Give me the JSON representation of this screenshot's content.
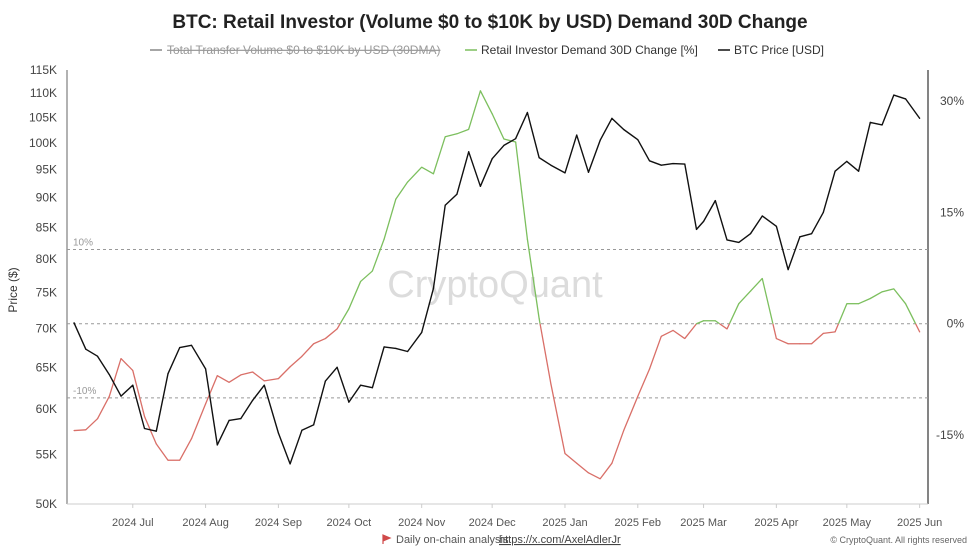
{
  "chart_data": {
    "type": "line",
    "title": "BTC: Retail Investor (Volume $0 to $10K by USD) Demand 30D Change",
    "legend": [
      {
        "name": "Total Transfer Volume $0 to $10K by USD (30DMA)",
        "color": "#888888",
        "hidden": true
      },
      {
        "name": "Retail Investor Demand 30D Change [%]",
        "color": "#7cbf5e"
      },
      {
        "name": "BTC Price [USD]",
        "color": "#111111"
      }
    ],
    "legend_position": "top-center",
    "ylabel": "Price ($)",
    "y_left": {
      "scale": "log",
      "range": [
        50000,
        115000
      ],
      "ticks": [
        "50K",
        "55K",
        "60K",
        "65K",
        "70K",
        "75K",
        "80K",
        "85K",
        "90K",
        "95K",
        "100K",
        "105K",
        "110K",
        "115K"
      ],
      "tick_values": [
        50000,
        55000,
        60000,
        65000,
        70000,
        75000,
        80000,
        85000,
        90000,
        95000,
        100000,
        105000,
        110000,
        115000
      ]
    },
    "y_right": {
      "range": [
        -24.3,
        34.2
      ],
      "ticks": [
        "-15%",
        "0%",
        "15%",
        "30%"
      ],
      "tick_values": [
        -15,
        0,
        15,
        30
      ]
    },
    "x_range": [
      "2024-06-03",
      "2025-06-02"
    ],
    "x_ticks": [
      "2024 Jul",
      "2024 Aug",
      "2024 Sep",
      "2024 Oct",
      "2024 Nov",
      "2024 Dec",
      "2025 Jan",
      "2025 Feb",
      "2025 Mar",
      "2025 Apr",
      "2025 May",
      "2025 Jun"
    ],
    "x_tick_dates": [
      "2024-07-01",
      "2024-08-01",
      "2024-09-01",
      "2024-10-01",
      "2024-11-01",
      "2024-12-01",
      "2025-01-01",
      "2025-02-01",
      "2025-03-01",
      "2025-04-01",
      "2025-05-01",
      "2025-06-01"
    ],
    "reference_lines": [
      {
        "value": 10,
        "label": "10%"
      },
      {
        "value": 0,
        "label": ""
      },
      {
        "value": -10,
        "label": "-10%"
      }
    ],
    "positive_color": "#7cbf5e",
    "negative_color": "#d96f68",
    "dates": [
      "2024-06-06",
      "2024-06-11",
      "2024-06-16",
      "2024-06-21",
      "2024-06-26",
      "2024-07-01",
      "2024-07-06",
      "2024-07-11",
      "2024-07-16",
      "2024-07-21",
      "2024-07-26",
      "2024-08-01",
      "2024-08-06",
      "2024-08-11",
      "2024-08-16",
      "2024-08-21",
      "2024-08-26",
      "2024-09-01",
      "2024-09-06",
      "2024-09-11",
      "2024-09-16",
      "2024-09-21",
      "2024-09-26",
      "2024-10-01",
      "2024-10-06",
      "2024-10-11",
      "2024-10-16",
      "2024-10-21",
      "2024-10-26",
      "2024-11-01",
      "2024-11-06",
      "2024-11-11",
      "2024-11-16",
      "2024-11-21",
      "2024-11-26",
      "2024-12-01",
      "2024-12-06",
      "2024-12-11",
      "2024-12-16",
      "2024-12-21",
      "2024-12-26",
      "2025-01-01",
      "2025-01-06",
      "2025-01-11",
      "2025-01-16",
      "2025-01-21",
      "2025-01-26",
      "2025-02-01",
      "2025-02-06",
      "2025-02-11",
      "2025-02-16",
      "2025-02-21",
      "2025-02-26",
      "2025-03-01",
      "2025-03-06",
      "2025-03-11",
      "2025-03-16",
      "2025-03-21",
      "2025-03-26",
      "2025-04-01",
      "2025-04-06",
      "2025-04-11",
      "2025-04-16",
      "2025-04-21",
      "2025-04-26",
      "2025-05-01",
      "2025-05-06",
      "2025-05-11",
      "2025-05-16",
      "2025-05-21",
      "2025-05-26",
      "2025-06-01"
    ],
    "series": [
      {
        "name": "BTC Price [USD]",
        "axis": "left",
        "values": [
          70800,
          67300,
          66400,
          64100,
          61500,
          62800,
          57800,
          57500,
          64200,
          67500,
          67800,
          64800,
          56000,
          58700,
          58900,
          61000,
          62800,
          57300,
          54000,
          57600,
          58200,
          63300,
          65000,
          60800,
          62800,
          62500,
          67600,
          67400,
          67000,
          69500,
          75600,
          88700,
          90600,
          98300,
          92000,
          97000,
          99500,
          100800,
          106000,
          97200,
          95800,
          94400,
          101500,
          94500,
          100500,
          104800,
          102600,
          100600,
          96600,
          95800,
          96100,
          96000,
          84700,
          86000,
          89500,
          83000,
          82600,
          84000,
          86900,
          85200,
          78400,
          83500,
          84000,
          87500,
          94700,
          96500,
          94700,
          104000,
          103500,
          109600,
          108800,
          104800
        ]
      },
      {
        "name": "Retail Investor Demand 30D Change [%]",
        "axis": "right",
        "values": [
          -14.4,
          -14.3,
          -12.8,
          -9.8,
          -4.7,
          -6.3,
          -12.5,
          -16.2,
          -18.4,
          -18.4,
          -15.5,
          -10.8,
          -7.0,
          -7.9,
          -6.9,
          -6.5,
          -7.7,
          -7.4,
          -5.8,
          -4.4,
          -2.7,
          -2.0,
          -0.7,
          2.0,
          5.7,
          7.1,
          11.4,
          16.8,
          19.1,
          21.1,
          20.2,
          25.2,
          25.6,
          26.2,
          31.4,
          28.3,
          24.9,
          24.5,
          11.4,
          0.7,
          -8.1,
          -17.5,
          -18.8,
          -20.1,
          -20.9,
          -18.8,
          -14.4,
          -9.8,
          -6.1,
          -1.7,
          -0.9,
          -2.0,
          0.0,
          0.4,
          0.4,
          -0.7,
          2.7,
          4.4,
          6.1,
          -2.0,
          -2.7,
          -2.7,
          -2.7,
          -1.3,
          -1.1,
          2.7,
          2.7,
          3.4,
          4.3,
          4.7,
          2.7,
          -1.1
        ]
      }
    ]
  },
  "watermark": "CryptoQuant",
  "footer": {
    "analysis_label": "Daily on-chain analysis:",
    "analysis_link": "https://x.com/AxelAdlerJr",
    "copyright": "© CryptoQuant. All rights reserved"
  }
}
